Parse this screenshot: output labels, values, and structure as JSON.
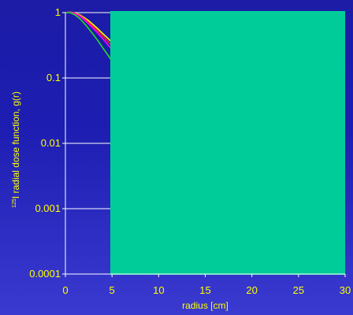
{
  "colors": {
    "background": "#1d1db2",
    "axis": "#ffffff",
    "text": "#ffff00",
    "overlay": "#00cc99",
    "series": [
      "#ffff00",
      "#ff2020",
      "#ff00ff",
      "#22dd22"
    ]
  },
  "chart_data": {
    "type": "line",
    "title": "",
    "xlabel": "radius [cm]",
    "ylabel_superscript": "125",
    "ylabel": "I radial dose function, g(r)",
    "xlim": [
      0,
      30
    ],
    "ylim": [
      0.0001,
      1
    ],
    "yscale": "log",
    "grid": "horizontal",
    "x_ticks": [
      "0",
      "5",
      "10",
      "15",
      "20",
      "25",
      "30"
    ],
    "y_ticks": [
      "1",
      "0.1",
      "0.01",
      "0.001",
      "0.0001"
    ],
    "x_tick_values": [
      0,
      5,
      10,
      15,
      20,
      25,
      30
    ],
    "y_tick_values": [
      1,
      0.1,
      0.01,
      0.001,
      0.0001
    ],
    "series": [
      {
        "x": [
          0,
          0.5,
          1,
          1.5,
          2,
          2.5,
          3,
          3.5,
          4,
          4.5,
          5
        ],
        "values": [
          1.0,
          1.02,
          0.99,
          0.93,
          0.84,
          0.75,
          0.65,
          0.56,
          0.48,
          0.41,
          0.35
        ]
      },
      {
        "x": [
          0,
          0.5,
          1,
          1.5,
          2,
          2.5,
          3,
          3.5,
          4,
          4.5,
          5
        ],
        "values": [
          1.0,
          1.02,
          0.98,
          0.91,
          0.81,
          0.71,
          0.61,
          0.52,
          0.44,
          0.37,
          0.31
        ]
      },
      {
        "x": [
          0,
          0.5,
          1,
          1.5,
          2,
          2.5,
          3,
          3.5,
          4,
          4.5,
          5
        ],
        "values": [
          1.0,
          1.01,
          0.97,
          0.89,
          0.78,
          0.67,
          0.57,
          0.48,
          0.4,
          0.33,
          0.27
        ]
      },
      {
        "x": [
          0,
          0.5,
          1,
          1.5,
          2,
          2.5,
          3,
          3.5,
          4,
          4.5,
          5
        ],
        "values": [
          1.0,
          1.0,
          0.93,
          0.82,
          0.69,
          0.57,
          0.46,
          0.37,
          0.29,
          0.23,
          0.18
        ]
      }
    ]
  }
}
